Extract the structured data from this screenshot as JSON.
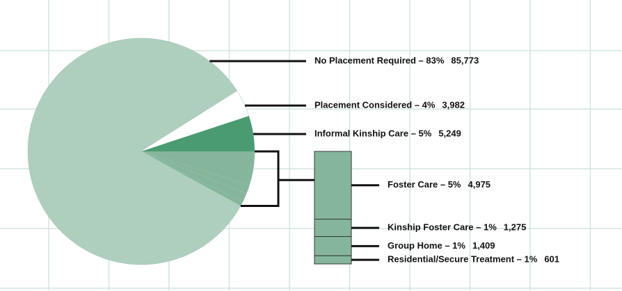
{
  "chart_data": {
    "type": "pie",
    "categories": [
      "No Placement Required – 83%",
      "Placement Considered – 4%",
      "Informal Kinship Care – 5%"
    ],
    "values": [
      85773,
      3982,
      5249
    ],
    "value_labels": [
      "85,773",
      "3,982",
      "5,249"
    ],
    "colors": [
      "#aecfbe",
      "#ffffff",
      "#4a9a72"
    ],
    "breakout": {
      "categories": [
        "Foster Care – 5%",
        "Kinship Foster Care – 1%",
        "Group Home – 1%",
        "Residential/Secure Treatment – 1%"
      ],
      "values": [
        4975,
        1275,
        1409,
        601
      ],
      "value_labels": [
        "4,975",
        "1,275",
        "1,409",
        "601"
      ],
      "colors": [
        "#85b69b",
        "#85b69b",
        "#85b69b",
        "#85b69b"
      ]
    }
  }
}
